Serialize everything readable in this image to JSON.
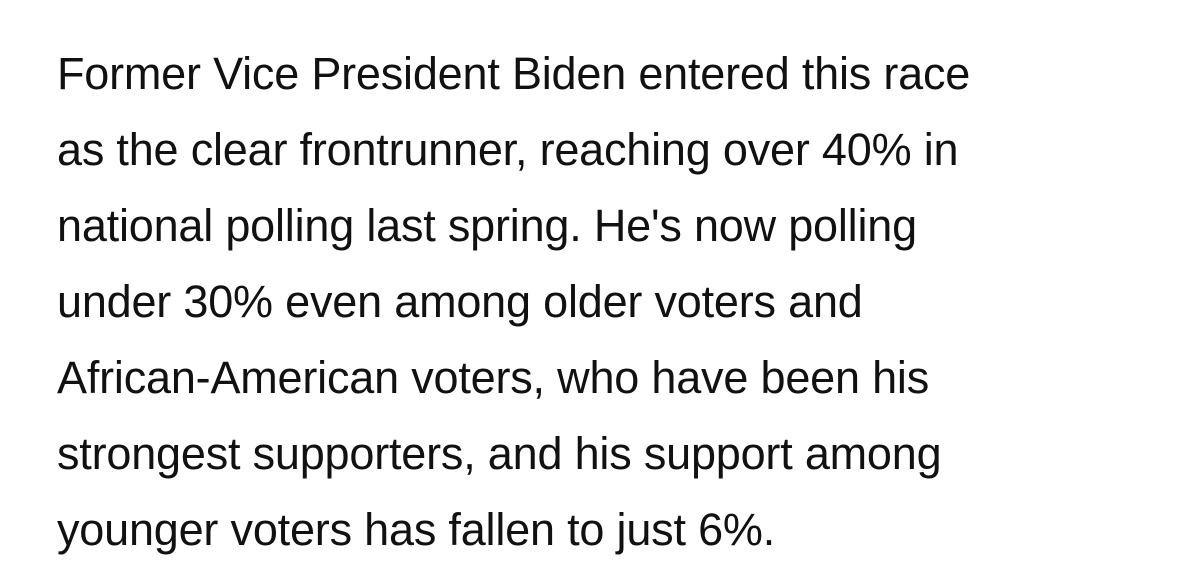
{
  "article": {
    "lines": [
      "Former Vice President Biden entered this race",
      "as the clear frontrunner, reaching over 40% in",
      "national polling last spring. He's now polling",
      "under 30% even among older voters and",
      "African-American voters, who have been his",
      "strongest supporters, and his support among",
      "younger voters has fallen to just 6%."
    ]
  }
}
